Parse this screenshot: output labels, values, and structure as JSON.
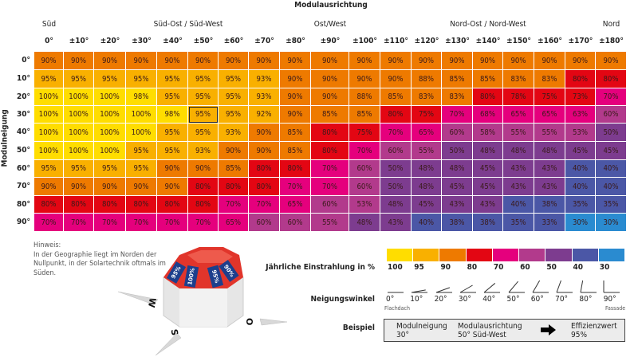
{
  "chart_data": {
    "type": "heatmap",
    "title": "Modulausrichtung",
    "ylabel": "Modulneigung",
    "column_groups": [
      {
        "label": "Süd",
        "center_col": 0
      },
      {
        "label": "Süd-Ost / Süd-West",
        "center_col": 4.5
      },
      {
        "label": "Ost/West",
        "center_col": 9
      },
      {
        "label": "Nord-Ost / Nord-West",
        "center_col": 14
      },
      {
        "label": "Nord",
        "center_col": 18
      }
    ],
    "columns": [
      "0°",
      "±10°",
      "±20°",
      "±30°",
      "±40°",
      "±50°",
      "±60°",
      "±70°",
      "±80°",
      "±90°",
      "±100°",
      "±110°",
      "±120°",
      "±130°",
      "±140°",
      "±150°",
      "±160°",
      "±170°",
      "±180°"
    ],
    "rows": [
      "0°",
      "10°",
      "20°",
      "30°",
      "40°",
      "50°",
      "60°",
      "70°",
      "80°",
      "90°"
    ],
    "unit": "%",
    "values": [
      [
        90,
        90,
        90,
        90,
        90,
        90,
        90,
        90,
        90,
        90,
        90,
        90,
        90,
        90,
        90,
        90,
        90,
        90,
        90
      ],
      [
        95,
        95,
        95,
        95,
        95,
        95,
        95,
        93,
        90,
        90,
        90,
        90,
        88,
        85,
        85,
        83,
        83,
        80,
        80
      ],
      [
        100,
        100,
        100,
        98,
        95,
        95,
        95,
        93,
        90,
        90,
        88,
        85,
        83,
        83,
        80,
        78,
        75,
        73,
        70
      ],
      [
        100,
        100,
        100,
        100,
        98,
        95,
        95,
        92,
        90,
        85,
        85,
        80,
        75,
        70,
        68,
        65,
        65,
        63,
        60
      ],
      [
        100,
        100,
        100,
        100,
        95,
        95,
        93,
        90,
        85,
        80,
        75,
        70,
        65,
        60,
        58,
        55,
        55,
        53,
        50
      ],
      [
        100,
        100,
        100,
        95,
        95,
        93,
        90,
        90,
        85,
        80,
        70,
        60,
        55,
        50,
        48,
        48,
        48,
        45,
        45
      ],
      [
        95,
        95,
        95,
        95,
        90,
        90,
        85,
        80,
        80,
        70,
        60,
        50,
        48,
        48,
        45,
        43,
        43,
        40,
        40
      ],
      [
        90,
        90,
        90,
        90,
        90,
        80,
        80,
        80,
        70,
        70,
        60,
        50,
        48,
        45,
        45,
        43,
        43,
        40,
        40
      ],
      [
        80,
        80,
        80,
        80,
        80,
        80,
        70,
        70,
        65,
        60,
        53,
        48,
        45,
        43,
        43,
        40,
        38,
        35,
        35
      ],
      [
        70,
        70,
        70,
        70,
        70,
        70,
        65,
        60,
        60,
        55,
        48,
        43,
        40,
        38,
        38,
        35,
        33,
        30,
        30
      ]
    ],
    "highlighted_cell": {
      "row": "30°",
      "column": "±50°"
    },
    "legend": {
      "title": "Jährliche Einstrahlung in %",
      "stops": [
        {
          "label": "100",
          "color": "#ffdd00"
        },
        {
          "label": "95",
          "color": "#f9b000"
        },
        {
          "label": "90",
          "color": "#ee7a00"
        },
        {
          "label": "80",
          "color": "#e30613"
        },
        {
          "label": "70",
          "color": "#e5007d"
        },
        {
          "label": "60",
          "color": "#b23a8c"
        },
        {
          "label": "50",
          "color": "#7d3c8f"
        },
        {
          "label": "40",
          "color": "#4b57a6"
        },
        {
          "label": "30",
          "color": "#2a8bd0"
        }
      ]
    }
  },
  "hint": {
    "title": "Hinweis:",
    "text": "In der Geographie liegt im Norden der Nullpunkt, in der Solartechnik oftmals im Süden."
  },
  "compass": {
    "labels": [
      "95%",
      "100%",
      "95%",
      "90%"
    ],
    "directions": {
      "west": "W",
      "east": "O",
      "south": "S"
    }
  },
  "tilt": {
    "label": "Neigungswinkel",
    "angles": [
      0,
      10,
      20,
      30,
      40,
      50,
      60,
      70,
      80,
      90
    ],
    "angle_labels": [
      "0°",
      "10°",
      "20°",
      "30°",
      "40°",
      "50°",
      "60°",
      "70°",
      "80°",
      "90°"
    ],
    "flat_label": "Flachdach",
    "facade_label": "Fassade"
  },
  "example": {
    "label": "Beispiel",
    "tilt_title": "Modulneigung",
    "tilt_value": "30°",
    "orientation_title": "Modulausrichtung",
    "orientation_value": "50° Süd-West",
    "result_title": "Effizienzwert",
    "result_value": "95%"
  }
}
